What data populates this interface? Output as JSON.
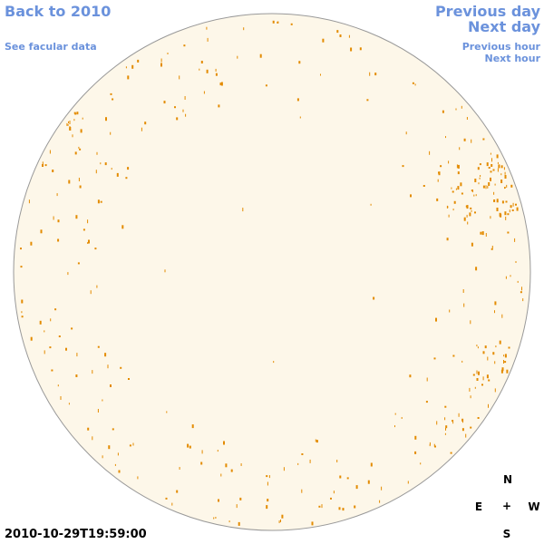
{
  "nav": {
    "back": "Back to 2010",
    "facular": "See facular data",
    "previous_day": "Previous day",
    "next_day": "Next day",
    "previous_hour": "Previous hour",
    "next_hour": "Next hour"
  },
  "timestamp": "2010-10-29T19:59:00",
  "compass": {
    "north": "N",
    "east": "E",
    "center": "+",
    "west": "W",
    "south": "S"
  }
}
